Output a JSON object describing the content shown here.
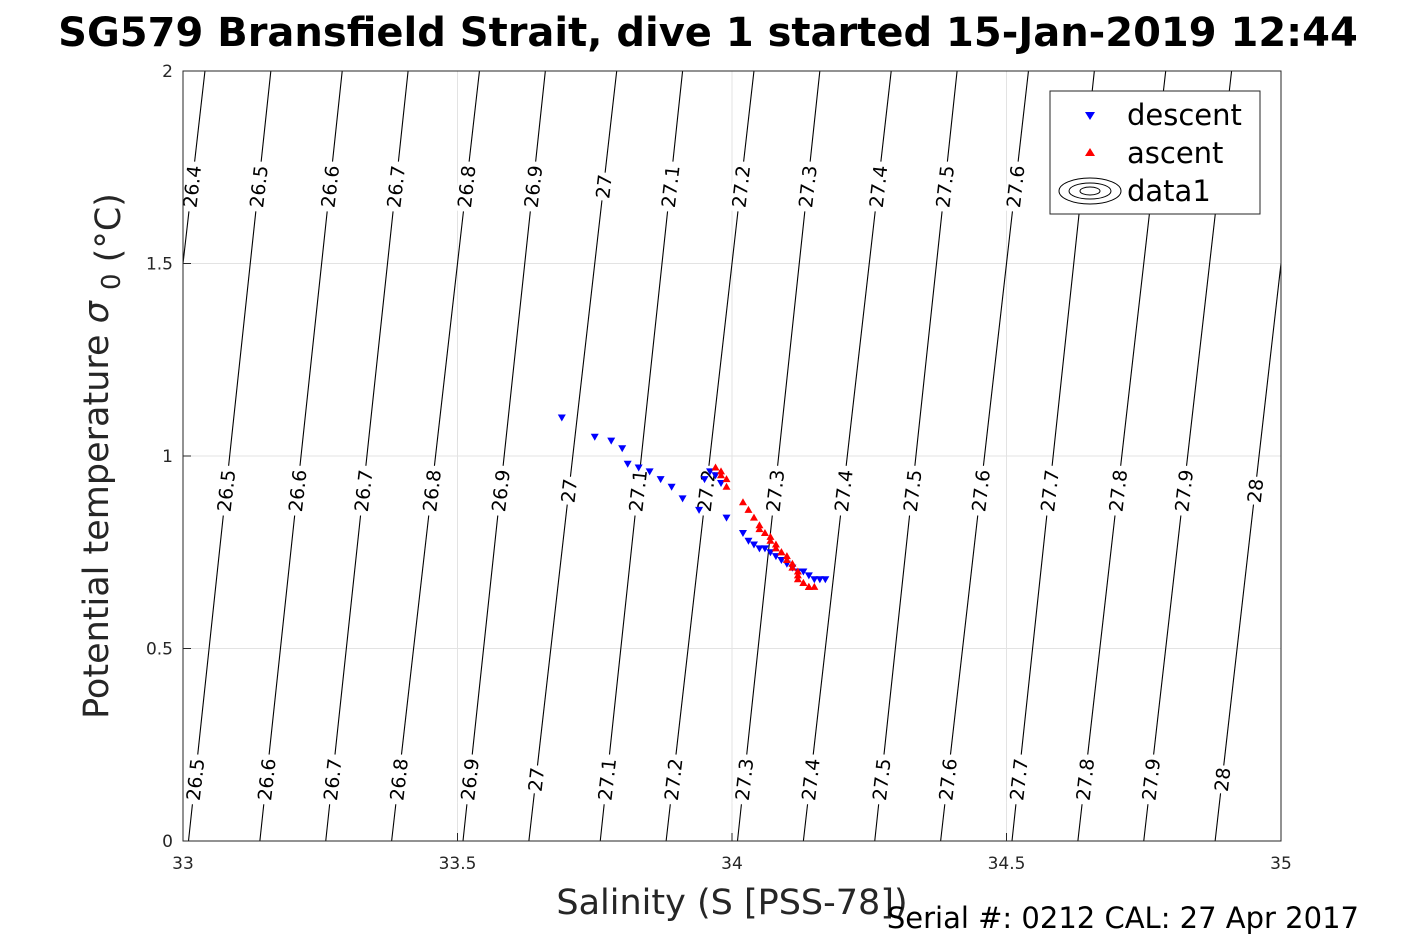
{
  "chart_data": {
    "type": "scatter",
    "title": "SG579 Bransfield Strait, dive 1 started 15-Jan-2019 12:44",
    "xlabel": "Salinity (S [PSS-78])",
    "ylabel_main": "Potential temperature",
    "ylabel_sigma": "σ",
    "ylabel_sub": "0",
    "ylabel_unit": "(°C)",
    "xlim": [
      33,
      35
    ],
    "ylim": [
      0,
      2
    ],
    "xticks": [
      "33",
      "33.5",
      "34",
      "34.5",
      "35"
    ],
    "yticks": [
      "0",
      "0.5",
      "1",
      "1.5",
      "2"
    ],
    "grid": true,
    "legend_position": "top-right",
    "legend": [
      "descent",
      "ascent",
      "data1"
    ],
    "footer": "Serial #: 0212  CAL: 27 Apr 2017",
    "colors": {
      "descent": "#0000ff",
      "ascent": "#ff0000",
      "contour": "#000000",
      "grid": "#e3e3e3"
    },
    "contour_levels": [
      "26.4",
      "26.5",
      "26.6",
      "26.7",
      "26.8",
      "26.9",
      "27",
      "27.1",
      "27.2",
      "27.3",
      "27.4",
      "27.5",
      "27.6",
      "27.7",
      "27.8",
      "27.9",
      "28"
    ],
    "contour_lines": [
      {
        "level": 26.4,
        "x_at_t0": 32.88,
        "x_at_t2": 33.04
      },
      {
        "level": 26.5,
        "x_at_t0": 33.01,
        "x_at_t2": 33.16
      },
      {
        "level": 26.6,
        "x_at_t0": 33.14,
        "x_at_t2": 33.29
      },
      {
        "level": 26.7,
        "x_at_t0": 33.26,
        "x_at_t2": 33.41
      },
      {
        "level": 26.8,
        "x_at_t0": 33.38,
        "x_at_t2": 33.54
      },
      {
        "level": 26.9,
        "x_at_t0": 33.51,
        "x_at_t2": 33.66
      },
      {
        "level": 27.0,
        "x_at_t0": 33.63,
        "x_at_t2": 33.79
      },
      {
        "level": 27.1,
        "x_at_t0": 33.76,
        "x_at_t2": 33.91
      },
      {
        "level": 27.2,
        "x_at_t0": 33.88,
        "x_at_t2": 34.04
      },
      {
        "level": 27.3,
        "x_at_t0": 34.01,
        "x_at_t2": 34.16
      },
      {
        "level": 27.4,
        "x_at_t0": 34.13,
        "x_at_t2": 34.29
      },
      {
        "level": 27.5,
        "x_at_t0": 34.26,
        "x_at_t2": 34.41
      },
      {
        "level": 27.6,
        "x_at_t0": 34.38,
        "x_at_t2": 34.54
      },
      {
        "level": 27.7,
        "x_at_t0": 34.51,
        "x_at_t2": 34.66
      },
      {
        "level": 27.8,
        "x_at_t0": 34.63,
        "x_at_t2": 34.79
      },
      {
        "level": 27.9,
        "x_at_t0": 34.75,
        "x_at_t2": 34.91
      },
      {
        "level": 28.0,
        "x_at_t0": 34.88,
        "x_at_t2": 35.04
      }
    ],
    "contour_label_rows": [
      {
        "t": 1.7,
        "levels": [
          26.4,
          26.5,
          26.6,
          26.7,
          26.8,
          26.9,
          27.0,
          27.1,
          27.2,
          27.3,
          27.4,
          27.5,
          27.6
        ]
      },
      {
        "t": 0.91,
        "levels": [
          26.5,
          26.6,
          26.7,
          26.8,
          26.9,
          27.0,
          27.1,
          27.2,
          27.3,
          27.4,
          27.5,
          27.6,
          27.7,
          27.8,
          27.9,
          28.0
        ]
      },
      {
        "t": 0.16,
        "levels": [
          26.5,
          26.6,
          26.7,
          26.8,
          26.9,
          27.0,
          27.1,
          27.2,
          27.3,
          27.4,
          27.5,
          27.6,
          27.7,
          27.8,
          27.9,
          28.0
        ]
      }
    ],
    "series": [
      {
        "name": "descent",
        "marker": "down-triangle",
        "x": [
          33.69,
          33.75,
          33.78,
          33.8,
          33.81,
          33.83,
          33.85,
          33.87,
          33.89,
          33.91,
          33.94,
          33.95,
          33.96,
          33.97,
          33.98,
          33.99,
          34.02,
          34.03,
          34.04,
          34.05,
          34.06,
          34.07,
          34.08,
          34.09,
          34.1,
          34.11,
          34.12,
          34.13,
          34.14,
          34.15,
          34.16,
          34.17
        ],
        "y": [
          1.1,
          1.05,
          1.04,
          1.02,
          0.98,
          0.97,
          0.96,
          0.94,
          0.92,
          0.89,
          0.86,
          0.94,
          0.96,
          0.95,
          0.93,
          0.84,
          0.8,
          0.78,
          0.77,
          0.76,
          0.76,
          0.75,
          0.74,
          0.73,
          0.72,
          0.71,
          0.7,
          0.7,
          0.69,
          0.68,
          0.68,
          0.68
        ]
      },
      {
        "name": "ascent",
        "marker": "up-triangle",
        "x": [
          33.97,
          33.98,
          33.98,
          33.99,
          33.99,
          34.02,
          34.03,
          34.04,
          34.05,
          34.05,
          34.06,
          34.07,
          34.07,
          34.08,
          34.08,
          34.09,
          34.09,
          34.1,
          34.1,
          34.11,
          34.11,
          34.12,
          34.12,
          34.12,
          34.13,
          34.13,
          34.14,
          34.14,
          34.15
        ],
        "y": [
          0.97,
          0.96,
          0.95,
          0.94,
          0.92,
          0.88,
          0.86,
          0.84,
          0.82,
          0.81,
          0.8,
          0.79,
          0.78,
          0.77,
          0.76,
          0.75,
          0.75,
          0.74,
          0.73,
          0.72,
          0.71,
          0.7,
          0.69,
          0.68,
          0.67,
          0.67,
          0.66,
          0.66,
          0.66
        ]
      }
    ]
  }
}
